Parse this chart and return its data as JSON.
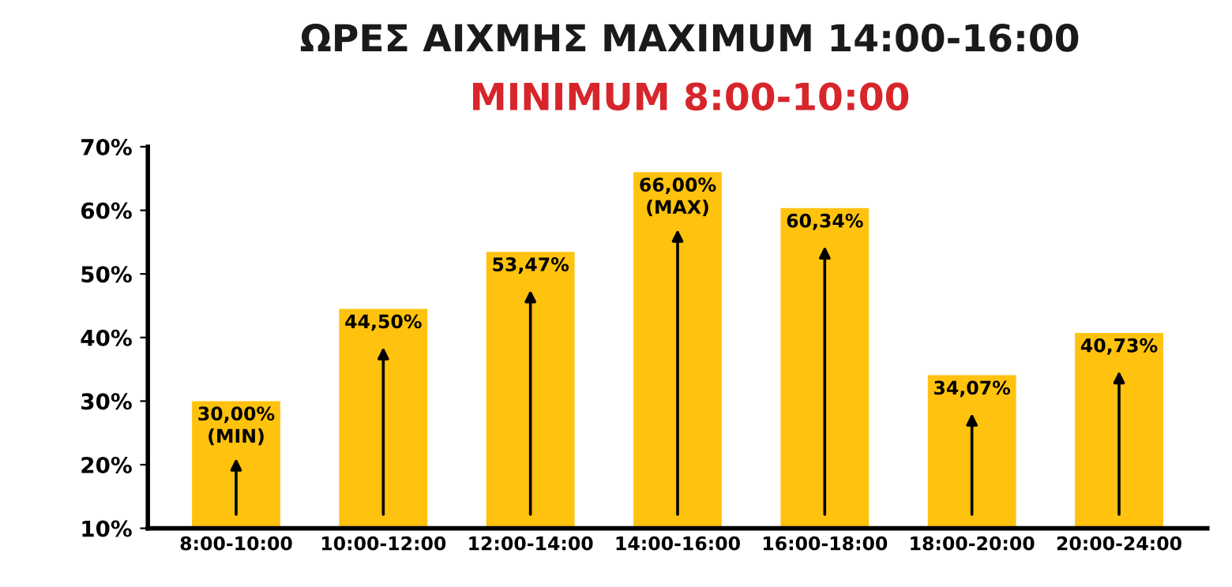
{
  "chart_data": {
    "type": "bar",
    "title": "ΩΡΕΣ ΑΙΧΜΗΣ MAXIMUM 14:00-16:00",
    "subtitle": "MINIMUM 8:00-10:00",
    "categories": [
      "8:00-10:00",
      "10:00-12:00",
      "12:00-14:00",
      "14:00-16:00",
      "16:00-18:00",
      "18:00-20:00",
      "20:00-24:00"
    ],
    "values": [
      30.0,
      44.5,
      53.47,
      66.0,
      60.34,
      34.07,
      40.73
    ],
    "value_labels": [
      "30,00%\n(MIN)",
      "44,50%",
      "53,47%",
      "66,00%\n(MAX)",
      "60,34%",
      "34,07%",
      "40,73%"
    ],
    "color": "#ffc20e",
    "ylim": [
      10,
      70
    ],
    "yticks": [
      {
        "value": 10,
        "label": "10%"
      },
      {
        "value": 20,
        "label": "20%"
      },
      {
        "value": 30,
        "label": "30%"
      },
      {
        "value": 40,
        "label": "40%"
      },
      {
        "value": 50,
        "label": "50%"
      },
      {
        "value": 60,
        "label": "60%"
      },
      {
        "value": 70,
        "label": "70%"
      }
    ],
    "grid": false,
    "legend": false
  }
}
